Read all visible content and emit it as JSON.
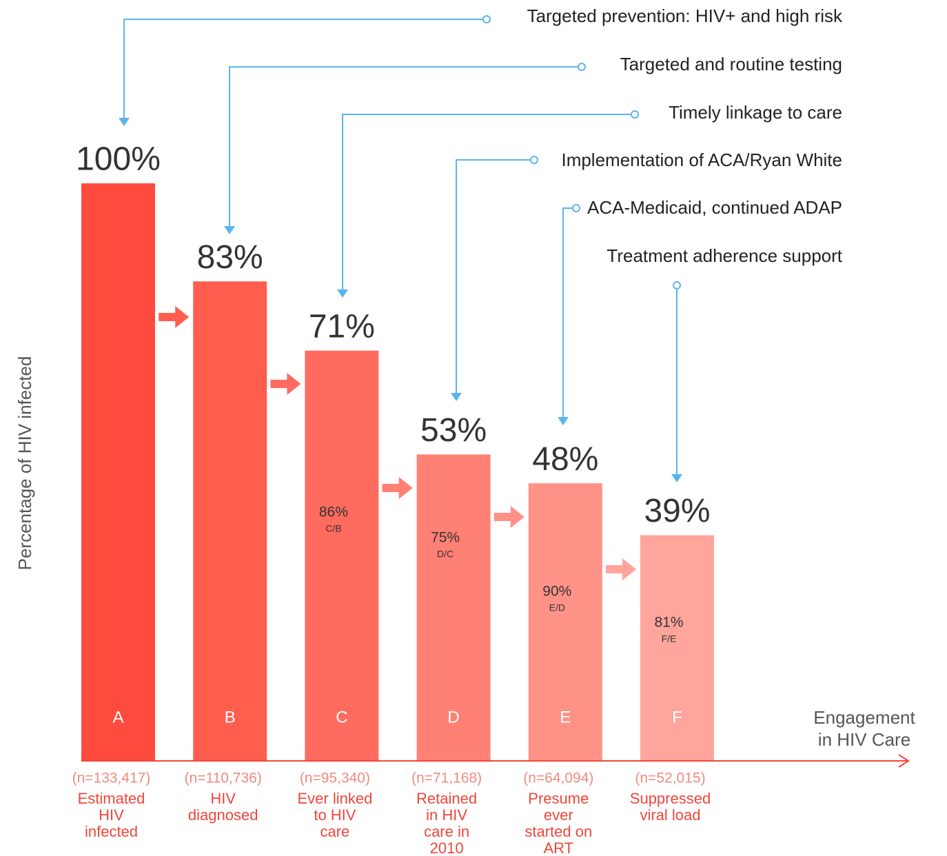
{
  "chart_data": {
    "type": "bar",
    "y_label": "Percentage of HIV infected",
    "x_label": [
      "Engagement",
      "in HIV Care"
    ],
    "categories": [
      [
        "Estimated",
        "HIV",
        "infected"
      ],
      [
        "HIV",
        "diagnosed"
      ],
      [
        "Ever linked",
        "to HIV",
        "care"
      ],
      [
        "Retained",
        "in HIV",
        "care in",
        "2010"
      ],
      [
        "Presume",
        "ever",
        "started on",
        "ART"
      ],
      [
        "Suppressed",
        "viral load"
      ]
    ],
    "letters": [
      "A",
      "B",
      "C",
      "D",
      "E",
      "F"
    ],
    "counts": [
      "(n=133,417)",
      "(n=110,736)",
      "(n=95,340)",
      "(n=71,168)",
      "(n=64,094)",
      "(n=52,015)"
    ],
    "values": [
      100,
      83,
      71,
      53,
      48,
      39
    ],
    "value_labels": [
      "100%",
      "83%",
      "71%",
      "53%",
      "48%",
      "39%"
    ],
    "colors": [
      "#ff4b3e",
      "#ff5e4f",
      "#ff6b5e",
      "#ff8074",
      "#ff9287",
      "#ffa59c"
    ],
    "ratios": [
      null,
      null,
      {
        "value": 86,
        "label": "86%",
        "of": "C/B"
      },
      {
        "value": 75,
        "label": "75%",
        "of": "D/C"
      },
      {
        "value": 90,
        "label": "90%",
        "of": "E/D"
      },
      {
        "value": 81,
        "label": "81%",
        "of": "F/E"
      }
    ],
    "annotations": [
      "Targeted prevention: HIV+ and high risk",
      "Targeted and routine testing",
      "Timely linkage to care",
      "Implementation of ACA/Ryan White",
      "ACA-Medicaid, continued ADAP",
      "Treatment adherence support"
    ],
    "ylim": [
      0,
      100
    ]
  }
}
